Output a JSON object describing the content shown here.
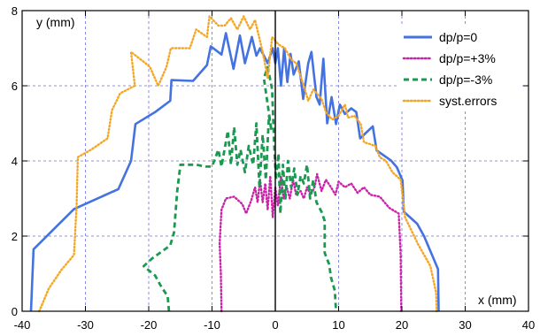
{
  "chart_data": {
    "type": "line",
    "title": "",
    "xlabel": "x (mm)",
    "ylabel": "y (mm)",
    "xlim": [
      -40,
      40
    ],
    "ylim": [
      0,
      8
    ],
    "xticks": [
      "-40",
      "-30",
      "-20",
      "-10",
      "0",
      "10",
      "20",
      "30",
      "40"
    ],
    "yticks": [
      "0",
      "2",
      "4",
      "6",
      "8"
    ],
    "grid": true,
    "legend_position": "top-right",
    "series": [
      {
        "name": "dp/p=0",
        "color": "#4472e0",
        "dash": "solid",
        "points": [
          [
            -38.6,
            0
          ],
          [
            -38.2,
            1.65
          ],
          [
            -31.8,
            2.72
          ],
          [
            -24.8,
            3.25
          ],
          [
            -22.8,
            4.0
          ],
          [
            -22.1,
            4.98
          ],
          [
            -19.0,
            5.3
          ],
          [
            -16.6,
            5.6
          ],
          [
            -16.4,
            6.15
          ],
          [
            -13.0,
            6.13
          ],
          [
            -10.8,
            6.55
          ],
          [
            -10.2,
            7.05
          ],
          [
            -8.5,
            6.83
          ],
          [
            -7.8,
            7.4
          ],
          [
            -6.6,
            6.45
          ],
          [
            -5.6,
            7.34
          ],
          [
            -4.8,
            6.6
          ],
          [
            -3.7,
            7.3
          ],
          [
            -3.0,
            6.8
          ],
          [
            -2.4,
            7.0
          ],
          [
            -1.2,
            6.6
          ],
          [
            -0.4,
            7.0
          ],
          [
            0.0,
            6.6
          ],
          [
            0.4,
            7.0
          ],
          [
            0.9,
            6.0
          ],
          [
            1.4,
            7.0
          ],
          [
            1.9,
            6.1
          ],
          [
            2.4,
            6.85
          ],
          [
            2.9,
            6.3
          ],
          [
            3.7,
            6.65
          ],
          [
            4.4,
            5.65
          ],
          [
            5.2,
            6.6
          ],
          [
            5.7,
            6.9
          ],
          [
            6.5,
            5.7
          ],
          [
            7.0,
            5.5
          ],
          [
            7.6,
            6.72
          ],
          [
            8.2,
            5.0
          ],
          [
            8.9,
            5.7
          ],
          [
            9.6,
            4.98
          ],
          [
            10.2,
            5.5
          ],
          [
            11.0,
            5.25
          ],
          [
            12.0,
            5.4
          ],
          [
            12.8,
            5.3
          ],
          [
            13.4,
            4.6
          ],
          [
            15.4,
            4.92
          ],
          [
            16.0,
            4.28
          ],
          [
            18.3,
            4.01
          ],
          [
            19.2,
            3.83
          ],
          [
            20.1,
            3.48
          ],
          [
            20.3,
            2.65
          ],
          [
            22.4,
            2.33
          ],
          [
            23.5,
            2.0
          ],
          [
            25.7,
            1.12
          ],
          [
            25.8,
            0
          ]
        ]
      },
      {
        "name": "dp/p=+3%",
        "color": "#cc22aa",
        "dash": "dotted",
        "points": [
          [
            -8.5,
            0
          ],
          [
            -8.6,
            1.0
          ],
          [
            -8.8,
            1.8
          ],
          [
            -8.5,
            2.7
          ],
          [
            -7.8,
            3.0
          ],
          [
            -6.5,
            3.05
          ],
          [
            -5.2,
            2.85
          ],
          [
            -4.6,
            2.6
          ],
          [
            -3.8,
            2.95
          ],
          [
            -3.2,
            3.3
          ],
          [
            -2.8,
            2.9
          ],
          [
            -2.4,
            3.5
          ],
          [
            -2.0,
            2.9
          ],
          [
            -1.6,
            3.4
          ],
          [
            -1.2,
            2.7
          ],
          [
            -0.8,
            3.6
          ],
          [
            -0.4,
            2.5
          ],
          [
            0.0,
            3.3
          ],
          [
            0.4,
            2.8
          ],
          [
            0.9,
            3.6
          ],
          [
            1.3,
            3.0
          ],
          [
            1.8,
            3.3
          ],
          [
            2.3,
            3.0
          ],
          [
            2.8,
            3.5
          ],
          [
            3.3,
            3.1
          ],
          [
            4.0,
            3.2
          ],
          [
            4.5,
            3.0
          ],
          [
            5.0,
            3.3
          ],
          [
            5.6,
            3.1
          ],
          [
            6.2,
            3.3
          ],
          [
            6.6,
            3.65
          ],
          [
            7.3,
            3.2
          ],
          [
            8.0,
            3.5
          ],
          [
            8.8,
            3.3
          ],
          [
            9.5,
            3.1
          ],
          [
            10.0,
            3.45
          ],
          [
            11.0,
            3.3
          ],
          [
            12.0,
            3.4
          ],
          [
            13.0,
            3.15
          ],
          [
            14.0,
            3.3
          ],
          [
            15.0,
            3.1
          ],
          [
            16.5,
            3.05
          ],
          [
            18.0,
            2.75
          ],
          [
            19.5,
            2.6
          ],
          [
            19.8,
            1.5
          ],
          [
            19.9,
            0
          ]
        ]
      },
      {
        "name": "dp/p=-3%",
        "color": "#1a9950",
        "dash": "dashed",
        "points": [
          [
            -16.8,
            0
          ],
          [
            -17.0,
            0.4
          ],
          [
            -18.0,
            0.65
          ],
          [
            -19.0,
            0.95
          ],
          [
            -20.8,
            1.2
          ],
          [
            -19.5,
            1.4
          ],
          [
            -16.6,
            1.75
          ],
          [
            -16.0,
            2.1
          ],
          [
            -15.5,
            3.2
          ],
          [
            -15.0,
            3.9
          ],
          [
            -12.5,
            3.9
          ],
          [
            -11.0,
            3.85
          ],
          [
            -10.0,
            3.85
          ],
          [
            -9.0,
            4.3
          ],
          [
            -8.5,
            3.85
          ],
          [
            -7.5,
            4.8
          ],
          [
            -7.0,
            3.9
          ],
          [
            -6.5,
            4.9
          ],
          [
            -6.0,
            3.9
          ],
          [
            -5.5,
            4.3
          ],
          [
            -4.8,
            3.7
          ],
          [
            -4.2,
            4.4
          ],
          [
            -3.5,
            3.9
          ],
          [
            -3.0,
            5.0
          ],
          [
            -2.5,
            3.3
          ],
          [
            -2.0,
            4.7
          ],
          [
            -1.5,
            3.5
          ],
          [
            -1.0,
            5.2
          ],
          [
            -0.6,
            4.8
          ],
          [
            -1.8,
            6.2
          ],
          [
            -1.2,
            6.5
          ],
          [
            -0.5,
            5.9
          ],
          [
            -0.2,
            4.5
          ],
          [
            0.1,
            3.5
          ],
          [
            0.5,
            4.2
          ],
          [
            0.8,
            2.6
          ],
          [
            1.2,
            3.9
          ],
          [
            1.6,
            3.0
          ],
          [
            2.0,
            4.0
          ],
          [
            2.5,
            3.3
          ],
          [
            3.0,
            3.8
          ],
          [
            3.5,
            3.1
          ],
          [
            4.0,
            3.6
          ],
          [
            4.5,
            3.4
          ],
          [
            5.0,
            3.9
          ],
          [
            5.5,
            3.0
          ],
          [
            6.0,
            3.5
          ],
          [
            6.5,
            2.9
          ],
          [
            7.3,
            2.65
          ],
          [
            7.8,
            2.4
          ],
          [
            7.8,
            1.55
          ],
          [
            8.5,
            1.25
          ],
          [
            8.8,
            0.9
          ],
          [
            9.4,
            0.55
          ],
          [
            9.6,
            0
          ]
        ]
      },
      {
        "name": "syst.errors",
        "color": "#f5a623",
        "dash": "dotted",
        "points": [
          [
            -37.3,
            0
          ],
          [
            -35.8,
            0.6
          ],
          [
            -33.8,
            1.1
          ],
          [
            -31.8,
            1.5
          ],
          [
            -31.4,
            2.8
          ],
          [
            -31.2,
            4.1
          ],
          [
            -29.1,
            4.3
          ],
          [
            -26.5,
            4.6
          ],
          [
            -25.8,
            5.35
          ],
          [
            -24.5,
            5.8
          ],
          [
            -22.2,
            6.0
          ],
          [
            -22.8,
            6.9
          ],
          [
            -20.5,
            6.6
          ],
          [
            -19.8,
            6.5
          ],
          [
            -18.5,
            6.0
          ],
          [
            -17.2,
            6.5
          ],
          [
            -16.5,
            7.0
          ],
          [
            -13.5,
            7.0
          ],
          [
            -12.5,
            7.5
          ],
          [
            -10.8,
            7.3
          ],
          [
            -10.4,
            7.85
          ],
          [
            -9.0,
            7.6
          ],
          [
            -8.0,
            7.6
          ],
          [
            -7.0,
            7.8
          ],
          [
            -6.0,
            7.5
          ],
          [
            -5.0,
            7.85
          ],
          [
            -4.0,
            7.5
          ],
          [
            -3.2,
            7.75
          ],
          [
            -2.0,
            6.9
          ],
          [
            -1.2,
            6.2
          ],
          [
            -0.5,
            7.3
          ],
          [
            0.5,
            7.1
          ],
          [
            1.5,
            7.0
          ],
          [
            2.5,
            6.7
          ],
          [
            3.3,
            6.6
          ],
          [
            4.5,
            6.0
          ],
          [
            5.2,
            5.6
          ],
          [
            6.0,
            5.9
          ],
          [
            7.3,
            5.65
          ],
          [
            8.0,
            5.3
          ],
          [
            9.0,
            5.1
          ],
          [
            10.0,
            5.2
          ],
          [
            11.0,
            5.5
          ],
          [
            11.5,
            5.15
          ],
          [
            12.5,
            5.2
          ],
          [
            13.5,
            4.98
          ],
          [
            14.0,
            4.5
          ],
          [
            15.8,
            4.4
          ],
          [
            16.5,
            4.1
          ],
          [
            17.5,
            4.0
          ],
          [
            18.5,
            3.7
          ],
          [
            19.8,
            3.5
          ],
          [
            20.5,
            2.5
          ],
          [
            22.5,
            1.8
          ],
          [
            24.5,
            1.2
          ],
          [
            25.4,
            0.5
          ],
          [
            25.5,
            0
          ]
        ]
      }
    ]
  }
}
